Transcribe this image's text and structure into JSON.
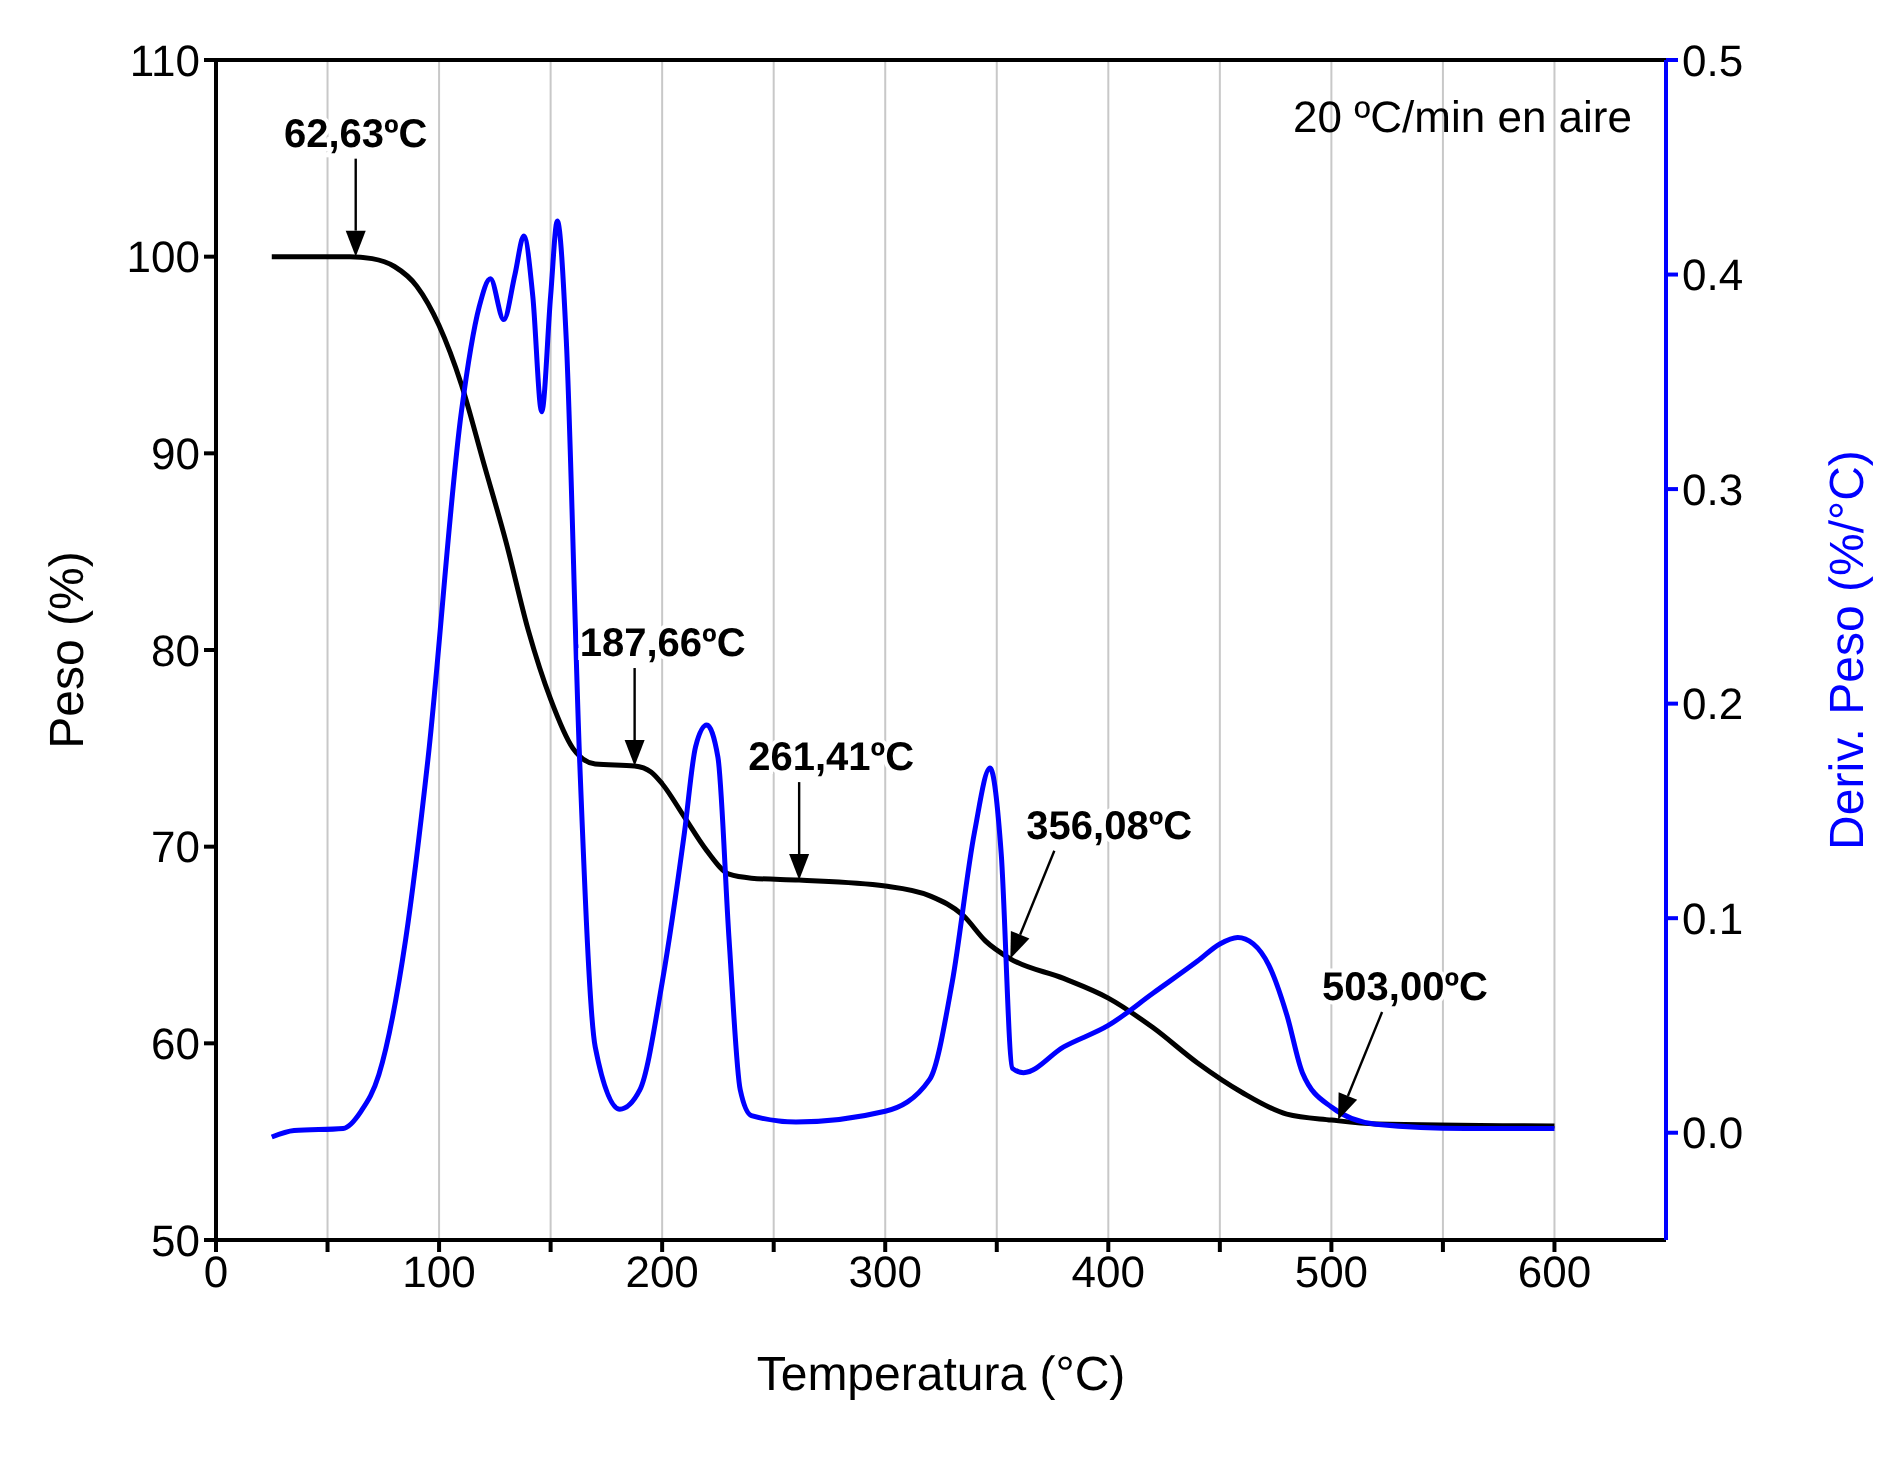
{
  "chart_data": {
    "type": "line",
    "xlabel": "Temperatura (°C)",
    "ylabel": "Peso (%)",
    "y2label": "Deriv. Peso (%/°C)",
    "xlim": [
      0,
      650
    ],
    "xticks": [
      0,
      {
        "value": 50,
        "label": null
      },
      100,
      {
        "value": 150,
        "label": null
      },
      200,
      {
        "value": 250,
        "label": null
      },
      300,
      {
        "value": 350,
        "label": null
      },
      400,
      {
        "value": 450,
        "label": null
      },
      500,
      {
        "value": 550,
        "label": null
      },
      600
    ],
    "ylim": [
      50,
      110
    ],
    "yticks": [
      50,
      60,
      70,
      80,
      90,
      100,
      110
    ],
    "y2lim": [
      -0.05,
      0.5
    ],
    "y2ticks": [
      {
        "value": 0,
        "label": "0.0"
      },
      0.1,
      0.2,
      0.3,
      0.4,
      0.5
    ],
    "grid": "x",
    "marker": "none",
    "line_style": "solid",
    "series": [
      {
        "color": "#000000",
        "x": [
          25,
          60,
          70,
          80,
          90,
          100,
          110,
          120,
          130,
          140,
          150,
          160,
          170,
          187.66,
          195,
          200,
          210,
          220,
          230,
          240,
          261.41,
          300,
          320,
          335,
          345,
          356.08,
          380,
          400,
          420,
          440,
          460,
          480,
          500,
          520,
          600
        ],
        "values": [
          100,
          100,
          99.9,
          99.5,
          98.5,
          96.5,
          93.5,
          89.5,
          85.5,
          81,
          77.5,
          75,
          74.2,
          74.1,
          73.8,
          73.2,
          71.5,
          69.8,
          68.6,
          68.4,
          68.3,
          68,
          67.5,
          66.5,
          65.2,
          64.3,
          63.3,
          62.3,
          60.8,
          59,
          57.5,
          56.4,
          56.1,
          55.9,
          55.8
        ]
      },
      {
        "color": "#0000ff",
        "axis": "y2",
        "x": [
          25,
          35,
          57,
          65,
          73,
          85,
          95,
          110,
          118,
          123,
          129,
          134,
          138,
          142,
          146,
          150,
          153,
          157,
          163,
          170,
          181,
          190,
          200,
          210,
          215,
          220,
          225,
          230,
          235,
          240,
          260,
          300,
          320,
          330,
          340,
          347,
          352,
          357,
          362,
          380,
          400,
          420,
          440,
          450,
          458,
          465,
          472,
          480,
          487,
          500,
          520,
          560,
          600
        ],
        "values": [
          -0.002,
          0.001,
          0.002,
          0.01,
          0.027,
          0.09,
          0.174,
          0.336,
          0.385,
          0.398,
          0.379,
          0.4,
          0.418,
          0.39,
          0.336,
          0.39,
          0.425,
          0.37,
          0.174,
          0.04,
          0.011,
          0.02,
          0.07,
          0.14,
          0.18,
          0.19,
          0.175,
          0.09,
          0.02,
          0.008,
          0.005,
          0.01,
          0.025,
          0.07,
          0.14,
          0.17,
          0.13,
          0.03,
          0.028,
          0.04,
          0.05,
          0.065,
          0.08,
          0.088,
          0.091,
          0.088,
          0.078,
          0.055,
          0.028,
          0.012,
          0.004,
          0.002,
          0.002
        ]
      }
    ],
    "annotations": [
      {
        "text": "62,63ºC",
        "x": 62.63,
        "y": 100
      },
      {
        "text": "187,66ºC",
        "x": 187.66,
        "y": 74.1
      },
      {
        "text": "261,41ºC",
        "x": 261.41,
        "y": 68.3
      },
      {
        "text": "356,08ºC",
        "x": 356.08,
        "y": 64.3
      },
      {
        "text": "503,00ºC",
        "x": 503,
        "y": 56.1
      },
      "20 ºC/min en aire"
    ]
  }
}
